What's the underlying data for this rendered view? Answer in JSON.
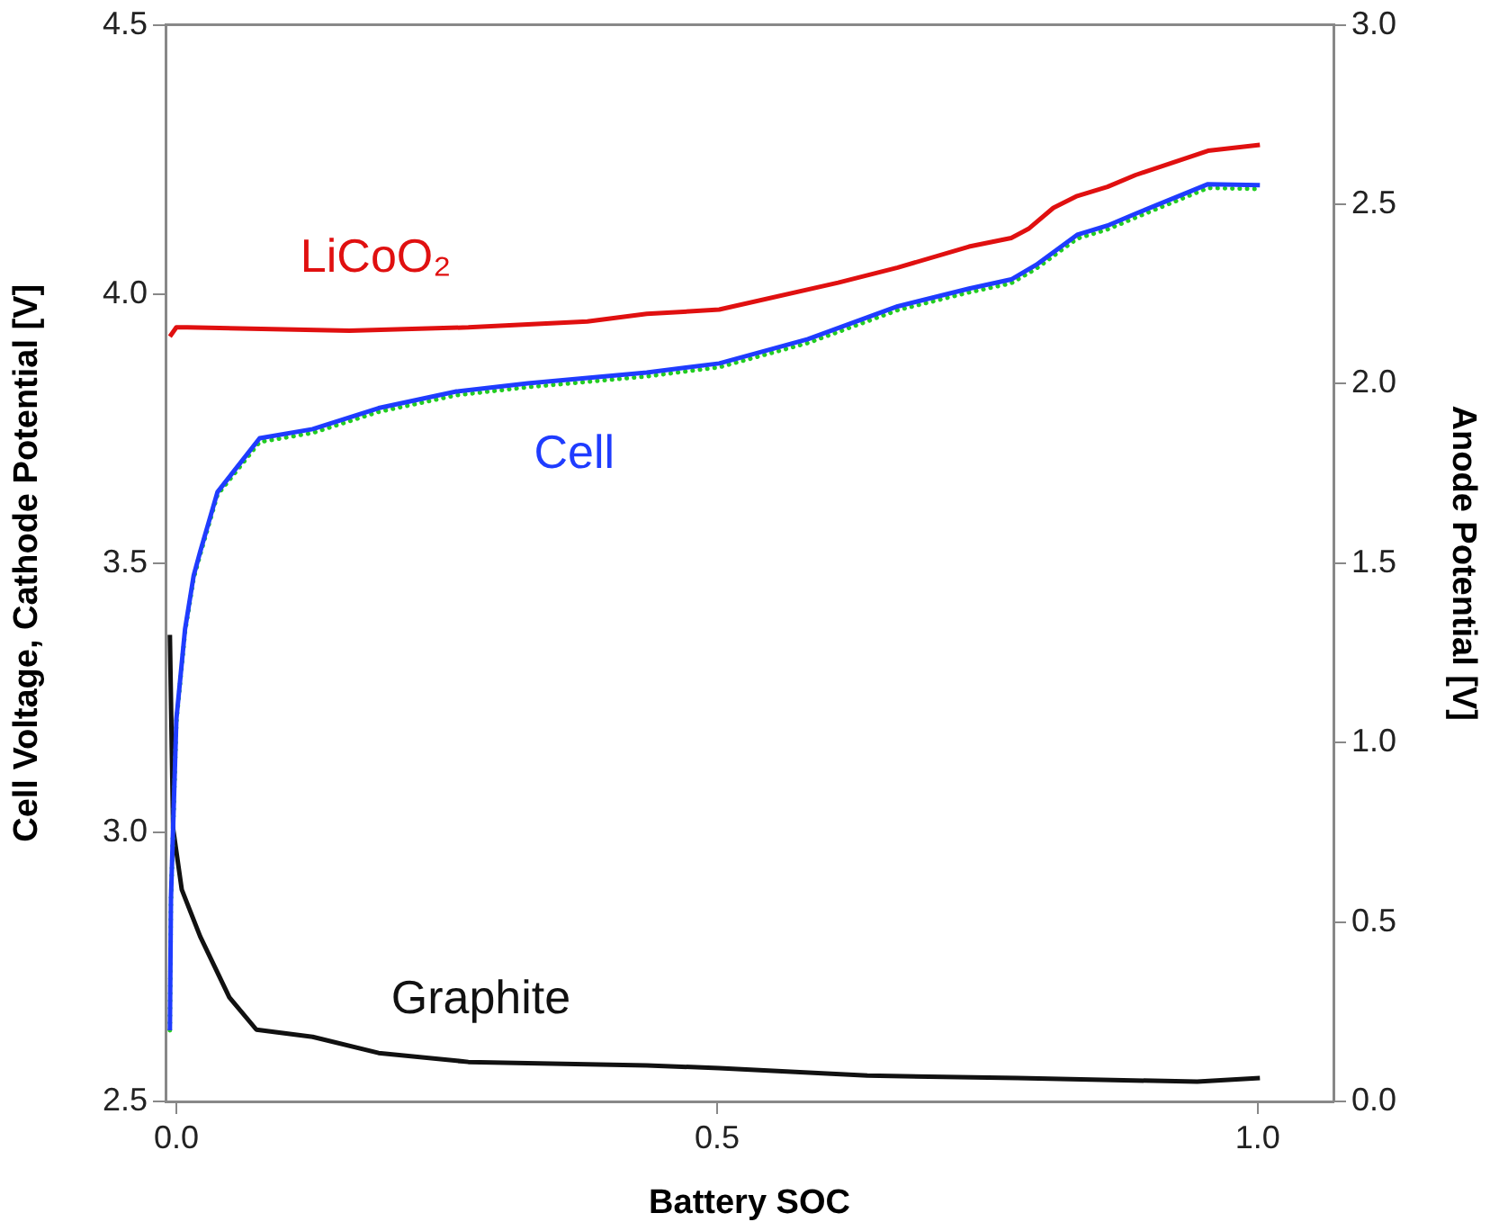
{
  "chart_data": {
    "type": "line",
    "xlabel": "Battery SOC",
    "ylabel": "Cell Voltage, Cathode Potential [V]",
    "y2label": "Anode Potential [V]",
    "xlim": [
      -0.01,
      1.07
    ],
    "xticks": [
      {
        "value": 0,
        "label": "0.0"
      },
      0.5,
      {
        "value": 1,
        "label": "1.0"
      }
    ],
    "ylim": [
      2.5,
      4.5
    ],
    "yticks": [
      2.5,
      {
        "value": 3,
        "label": "3.0"
      },
      3.5,
      {
        "value": 4,
        "label": "4.0"
      },
      4.5
    ],
    "y2lim": [
      0,
      3
    ],
    "y2ticks": [
      {
        "value": 0,
        "label": "0.0"
      },
      0.5,
      {
        "value": 1,
        "label": "1.0"
      },
      1.5,
      {
        "value": 2,
        "label": "2.0"
      },
      2.5,
      {
        "value": 3,
        "label": "3.0"
      }
    ],
    "marker": "none",
    "grid": false,
    "legend": false,
    "series": [
      {
        "name": "LiCoO₂",
        "color": "#e01010",
        "x": [
          -0.006,
          0.0,
          0.01,
          0.16,
          0.27,
          0.38,
          0.435,
          0.502,
          0.612,
          0.667,
          0.733,
          0.772,
          0.788,
          0.811,
          0.833,
          0.861,
          0.887,
          0.954,
          1.002
        ],
        "values": [
          3.921,
          3.938,
          3.938,
          3.932,
          3.938,
          3.949,
          3.963,
          3.971,
          4.021,
          4.049,
          4.088,
          4.104,
          4.121,
          4.16,
          4.182,
          4.199,
          4.221,
          4.266,
          4.277
        ]
      },
      {
        "name": "Cell",
        "color": "#1f3cff",
        "x": [
          -0.006,
          -0.005,
          0.0,
          0.008,
          0.016,
          0.022,
          0.038,
          0.077,
          0.126,
          0.187,
          0.259,
          0.325,
          0.435,
          0.502,
          0.584,
          0.667,
          0.733,
          0.772,
          0.795,
          0.833,
          0.861,
          0.887,
          0.954,
          1.002
        ],
        "values": [
          2.632,
          2.877,
          3.21,
          3.377,
          3.477,
          3.521,
          3.632,
          3.732,
          3.749,
          3.788,
          3.819,
          3.834,
          3.854,
          3.871,
          3.916,
          3.977,
          4.01,
          4.027,
          4.054,
          4.11,
          4.127,
          4.149,
          4.204,
          4.202
        ]
      },
      {
        "color": "#22cc22",
        "line_style": "dotted",
        "x": [
          -0.006,
          -0.005,
          0.0,
          0.008,
          0.016,
          0.022,
          0.038,
          0.077,
          0.126,
          0.187,
          0.259,
          0.325,
          0.435,
          0.502,
          0.584,
          0.667,
          0.733,
          0.772,
          0.795,
          0.833,
          0.861,
          0.887,
          0.954,
          1.002
        ],
        "values": [
          2.632,
          2.872,
          3.205,
          3.372,
          3.472,
          3.516,
          3.627,
          3.725,
          3.742,
          3.781,
          3.812,
          3.827,
          3.847,
          3.864,
          3.909,
          3.97,
          4.003,
          4.02,
          4.047,
          4.103,
          4.12,
          4.142,
          4.197,
          4.195
        ]
      },
      {
        "name": "Graphite",
        "color": "#111111",
        "axis": "y2",
        "x": [
          -0.006,
          -0.003,
          0.005,
          0.022,
          0.049,
          0.074,
          0.126,
          0.187,
          0.27,
          0.435,
          0.502,
          0.639,
          0.778,
          0.944,
          1.002
        ],
        "values": [
          1.3,
          0.76,
          0.59,
          0.46,
          0.29,
          0.2,
          0.18,
          0.135,
          0.11,
          0.1,
          0.093,
          0.072,
          0.065,
          0.055,
          0.065
        ]
      }
    ]
  }
}
